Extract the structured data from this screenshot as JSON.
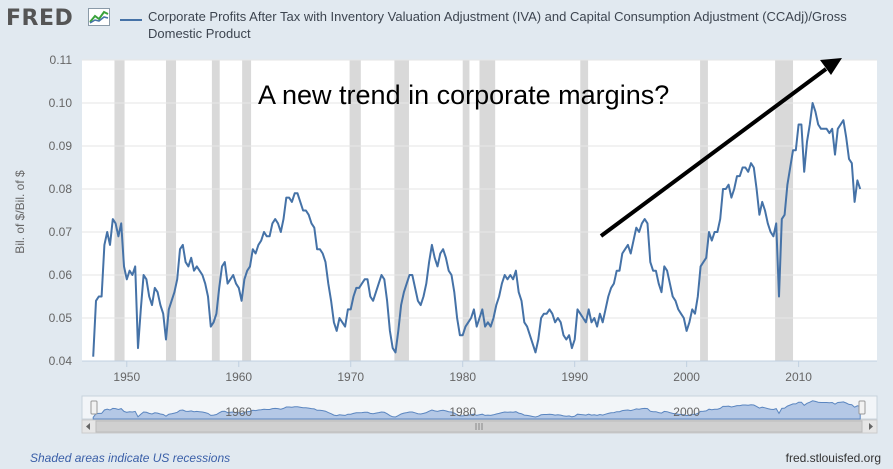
{
  "header": {
    "logo": "FRED",
    "legend_label": "Corporate Profits After Tax with Inventory Valuation Adjustment (IVA) and Capital Consumption Adjustment (CCAdj)/Gross Domestic Product"
  },
  "footer": {
    "note": "Shaded areas indicate US recessions",
    "site": "fred.stlouisfed.org"
  },
  "colors": {
    "series": "#4572a7",
    "recession": "#d9d9d9",
    "background": "#e1e9f0",
    "plot_background": "#ffffff",
    "navigator_fill": "#b4c8e6"
  },
  "chart_data": {
    "type": "line",
    "ylabel": "Bil. of $/Bil. of $",
    "ylim": [
      0.04,
      0.11
    ],
    "yticks": [
      "0.04",
      "0.05",
      "0.06",
      "0.07",
      "0.08",
      "0.09",
      "0.10",
      "0.11"
    ],
    "xlim": [
      1946,
      2017
    ],
    "xticks": [
      "1950",
      "1960",
      "1970",
      "1980",
      "1990",
      "2000",
      "2010"
    ],
    "grid": true,
    "annotation": "A new trend in corporate margins?",
    "recessions": [
      [
        1948.9,
        1949.8
      ],
      [
        1953.5,
        1954.4
      ],
      [
        1957.6,
        1958.3
      ],
      [
        1960.3,
        1961.1
      ],
      [
        1969.9,
        1970.9
      ],
      [
        1973.9,
        1975.2
      ],
      [
        1980.0,
        1980.6
      ],
      [
        1981.5,
        1982.9
      ],
      [
        1990.5,
        1991.2
      ],
      [
        2001.2,
        2001.9
      ],
      [
        2007.9,
        2009.5
      ]
    ],
    "navigator_ticks": [
      "1960",
      "1980",
      "2000"
    ],
    "series": [
      {
        "name": "Corporate Profits After Tax with Inventory Valuation Adjustment (IVA) and Capital Consumption Adjustment (CCAdj)/Gross Domestic Product",
        "points": [
          [
            1947.0,
            0.041
          ],
          [
            1947.25,
            0.054
          ],
          [
            1947.5,
            0.055
          ],
          [
            1947.75,
            0.055
          ],
          [
            1948.0,
            0.067
          ],
          [
            1948.25,
            0.07
          ],
          [
            1948.5,
            0.067
          ],
          [
            1948.75,
            0.073
          ],
          [
            1949.0,
            0.072
          ],
          [
            1949.25,
            0.069
          ],
          [
            1949.5,
            0.072
          ],
          [
            1949.75,
            0.062
          ],
          [
            1950.0,
            0.059
          ],
          [
            1950.25,
            0.061
          ],
          [
            1950.5,
            0.06
          ],
          [
            1950.75,
            0.062
          ],
          [
            1951.0,
            0.043
          ],
          [
            1951.25,
            0.052
          ],
          [
            1951.5,
            0.06
          ],
          [
            1951.75,
            0.059
          ],
          [
            1952.0,
            0.055
          ],
          [
            1952.25,
            0.053
          ],
          [
            1952.5,
            0.057
          ],
          [
            1952.75,
            0.056
          ],
          [
            1953.0,
            0.053
          ],
          [
            1953.25,
            0.051
          ],
          [
            1953.5,
            0.045
          ],
          [
            1953.75,
            0.052
          ],
          [
            1954.0,
            0.054
          ],
          [
            1954.25,
            0.056
          ],
          [
            1954.5,
            0.059
          ],
          [
            1954.75,
            0.066
          ],
          [
            1955.0,
            0.067
          ],
          [
            1955.25,
            0.063
          ],
          [
            1955.5,
            0.062
          ],
          [
            1955.75,
            0.064
          ],
          [
            1956.0,
            0.061
          ],
          [
            1956.25,
            0.062
          ],
          [
            1956.5,
            0.061
          ],
          [
            1956.75,
            0.06
          ],
          [
            1957.0,
            0.058
          ],
          [
            1957.25,
            0.055
          ],
          [
            1957.5,
            0.048
          ],
          [
            1957.75,
            0.049
          ],
          [
            1958.0,
            0.051
          ],
          [
            1958.25,
            0.057
          ],
          [
            1958.5,
            0.062
          ],
          [
            1958.75,
            0.063
          ],
          [
            1959.0,
            0.058
          ],
          [
            1959.25,
            0.059
          ],
          [
            1959.5,
            0.06
          ],
          [
            1959.75,
            0.058
          ],
          [
            1960.0,
            0.057
          ],
          [
            1960.25,
            0.054
          ],
          [
            1960.5,
            0.059
          ],
          [
            1960.75,
            0.061
          ],
          [
            1961.0,
            0.062
          ],
          [
            1961.25,
            0.066
          ],
          [
            1961.5,
            0.065
          ],
          [
            1961.75,
            0.067
          ],
          [
            1962.0,
            0.068
          ],
          [
            1962.25,
            0.07
          ],
          [
            1962.5,
            0.069
          ],
          [
            1962.75,
            0.069
          ],
          [
            1963.0,
            0.072
          ],
          [
            1963.25,
            0.073
          ],
          [
            1963.5,
            0.072
          ],
          [
            1963.75,
            0.07
          ],
          [
            1964.0,
            0.073
          ],
          [
            1964.25,
            0.078
          ],
          [
            1964.5,
            0.078
          ],
          [
            1964.75,
            0.077
          ],
          [
            1965.0,
            0.079
          ],
          [
            1965.25,
            0.079
          ],
          [
            1965.5,
            0.077
          ],
          [
            1965.75,
            0.075
          ],
          [
            1966.0,
            0.075
          ],
          [
            1966.25,
            0.074
          ],
          [
            1966.5,
            0.072
          ],
          [
            1966.75,
            0.071
          ],
          [
            1967.0,
            0.066
          ],
          [
            1967.25,
            0.066
          ],
          [
            1967.5,
            0.065
          ],
          [
            1967.75,
            0.063
          ],
          [
            1968.0,
            0.058
          ],
          [
            1968.25,
            0.054
          ],
          [
            1968.5,
            0.049
          ],
          [
            1968.75,
            0.047
          ],
          [
            1969.0,
            0.05
          ],
          [
            1969.25,
            0.049
          ],
          [
            1969.5,
            0.048
          ],
          [
            1969.75,
            0.052
          ],
          [
            1970.0,
            0.052
          ],
          [
            1970.25,
            0.055
          ],
          [
            1970.5,
            0.057
          ],
          [
            1970.75,
            0.057
          ],
          [
            1971.0,
            0.058
          ],
          [
            1971.25,
            0.059
          ],
          [
            1971.5,
            0.059
          ],
          [
            1971.75,
            0.055
          ],
          [
            1972.0,
            0.054
          ],
          [
            1972.25,
            0.056
          ],
          [
            1972.5,
            0.058
          ],
          [
            1972.75,
            0.06
          ],
          [
            1973.0,
            0.059
          ],
          [
            1973.25,
            0.054
          ],
          [
            1973.5,
            0.047
          ],
          [
            1973.75,
            0.043
          ],
          [
            1974.0,
            0.042
          ],
          [
            1974.25,
            0.047
          ],
          [
            1974.5,
            0.053
          ],
          [
            1974.75,
            0.056
          ],
          [
            1975.0,
            0.058
          ],
          [
            1975.25,
            0.06
          ],
          [
            1975.5,
            0.06
          ],
          [
            1975.75,
            0.057
          ],
          [
            1976.0,
            0.054
          ],
          [
            1976.25,
            0.053
          ],
          [
            1976.5,
            0.055
          ],
          [
            1976.75,
            0.058
          ],
          [
            1977.0,
            0.063
          ],
          [
            1977.25,
            0.067
          ],
          [
            1977.5,
            0.064
          ],
          [
            1977.75,
            0.062
          ],
          [
            1978.0,
            0.065
          ],
          [
            1978.25,
            0.066
          ],
          [
            1978.5,
            0.064
          ],
          [
            1978.75,
            0.061
          ],
          [
            1979.0,
            0.06
          ],
          [
            1979.25,
            0.056
          ],
          [
            1979.5,
            0.05
          ],
          [
            1979.75,
            0.046
          ],
          [
            1980.0,
            0.046
          ],
          [
            1980.25,
            0.048
          ],
          [
            1980.5,
            0.049
          ],
          [
            1980.75,
            0.05
          ],
          [
            1981.0,
            0.052
          ],
          [
            1981.25,
            0.048
          ],
          [
            1981.5,
            0.05
          ],
          [
            1981.75,
            0.052
          ],
          [
            1982.0,
            0.048
          ],
          [
            1982.25,
            0.049
          ],
          [
            1982.5,
            0.048
          ],
          [
            1982.75,
            0.05
          ],
          [
            1983.0,
            0.053
          ],
          [
            1983.25,
            0.055
          ],
          [
            1983.5,
            0.058
          ],
          [
            1983.75,
            0.06
          ],
          [
            1984.0,
            0.059
          ],
          [
            1984.25,
            0.06
          ],
          [
            1984.5,
            0.059
          ],
          [
            1984.75,
            0.061
          ],
          [
            1985.0,
            0.056
          ],
          [
            1985.25,
            0.054
          ],
          [
            1985.5,
            0.049
          ],
          [
            1985.75,
            0.048
          ],
          [
            1986.0,
            0.046
          ],
          [
            1986.25,
            0.044
          ],
          [
            1986.5,
            0.042
          ],
          [
            1986.75,
            0.045
          ],
          [
            1987.0,
            0.05
          ],
          [
            1987.25,
            0.051
          ],
          [
            1987.5,
            0.051
          ],
          [
            1987.75,
            0.052
          ],
          [
            1988.0,
            0.051
          ],
          [
            1988.25,
            0.049
          ],
          [
            1988.5,
            0.05
          ],
          [
            1988.75,
            0.049
          ],
          [
            1989.0,
            0.046
          ],
          [
            1989.25,
            0.045
          ],
          [
            1989.5,
            0.046
          ],
          [
            1989.75,
            0.043
          ],
          [
            1990.0,
            0.045
          ],
          [
            1990.25,
            0.052
          ],
          [
            1990.5,
            0.051
          ],
          [
            1990.75,
            0.05
          ],
          [
            1991.0,
            0.049
          ],
          [
            1991.25,
            0.052
          ],
          [
            1991.5,
            0.049
          ],
          [
            1991.75,
            0.05
          ],
          [
            1992.0,
            0.048
          ],
          [
            1992.25,
            0.051
          ],
          [
            1992.5,
            0.049
          ],
          [
            1992.75,
            0.052
          ],
          [
            1993.0,
            0.055
          ],
          [
            1993.25,
            0.057
          ],
          [
            1993.5,
            0.058
          ],
          [
            1993.75,
            0.061
          ],
          [
            1994.0,
            0.061
          ],
          [
            1994.25,
            0.065
          ],
          [
            1994.5,
            0.066
          ],
          [
            1994.75,
            0.067
          ],
          [
            1995.0,
            0.065
          ],
          [
            1995.25,
            0.068
          ],
          [
            1995.5,
            0.071
          ],
          [
            1995.75,
            0.07
          ],
          [
            1996.0,
            0.072
          ],
          [
            1996.25,
            0.073
          ],
          [
            1996.5,
            0.072
          ],
          [
            1996.75,
            0.063
          ],
          [
            1997.0,
            0.061
          ],
          [
            1997.25,
            0.061
          ],
          [
            1997.5,
            0.058
          ],
          [
            1997.75,
            0.056
          ],
          [
            1998.0,
            0.062
          ],
          [
            1998.25,
            0.061
          ],
          [
            1998.5,
            0.058
          ],
          [
            1998.75,
            0.055
          ],
          [
            1999.0,
            0.054
          ],
          [
            1999.25,
            0.052
          ],
          [
            1999.5,
            0.051
          ],
          [
            1999.75,
            0.05
          ],
          [
            2000.0,
            0.047
          ],
          [
            2000.25,
            0.049
          ],
          [
            2000.5,
            0.052
          ],
          [
            2000.75,
            0.051
          ],
          [
            2001.0,
            0.055
          ],
          [
            2001.25,
            0.062
          ],
          [
            2001.5,
            0.063
          ],
          [
            2001.75,
            0.064
          ],
          [
            2002.0,
            0.07
          ],
          [
            2002.25,
            0.068
          ],
          [
            2002.5,
            0.07
          ],
          [
            2002.75,
            0.07
          ],
          [
            2003.0,
            0.073
          ],
          [
            2003.25,
            0.08
          ],
          [
            2003.5,
            0.08
          ],
          [
            2003.75,
            0.081
          ],
          [
            2004.0,
            0.078
          ],
          [
            2004.25,
            0.08
          ],
          [
            2004.5,
            0.083
          ],
          [
            2004.75,
            0.083
          ],
          [
            2005.0,
            0.085
          ],
          [
            2005.25,
            0.085
          ],
          [
            2005.5,
            0.084
          ],
          [
            2005.75,
            0.086
          ],
          [
            2006.0,
            0.085
          ],
          [
            2006.25,
            0.08
          ],
          [
            2006.5,
            0.074
          ],
          [
            2006.75,
            0.077
          ],
          [
            2007.0,
            0.075
          ],
          [
            2007.25,
            0.072
          ],
          [
            2007.5,
            0.07
          ],
          [
            2007.75,
            0.069
          ],
          [
            2008.0,
            0.072
          ],
          [
            2008.25,
            0.055
          ],
          [
            2008.5,
            0.073
          ],
          [
            2008.75,
            0.074
          ],
          [
            2009.0,
            0.081
          ],
          [
            2009.25,
            0.085
          ],
          [
            2009.5,
            0.089
          ],
          [
            2009.75,
            0.089
          ],
          [
            2010.0,
            0.095
          ],
          [
            2010.25,
            0.095
          ],
          [
            2010.5,
            0.084
          ],
          [
            2010.75,
            0.091
          ],
          [
            2011.0,
            0.095
          ],
          [
            2011.25,
            0.1
          ],
          [
            2011.5,
            0.098
          ],
          [
            2011.75,
            0.095
          ],
          [
            2012.0,
            0.094
          ],
          [
            2012.25,
            0.094
          ],
          [
            2012.5,
            0.094
          ],
          [
            2012.75,
            0.093
          ],
          [
            2013.0,
            0.094
          ],
          [
            2013.25,
            0.088
          ],
          [
            2013.5,
            0.094
          ],
          [
            2013.75,
            0.095
          ],
          [
            2014.0,
            0.096
          ],
          [
            2014.25,
            0.092
          ],
          [
            2014.5,
            0.087
          ],
          [
            2014.75,
            0.086
          ],
          [
            2015.0,
            0.077
          ],
          [
            2015.25,
            0.082
          ],
          [
            2015.5,
            0.08
          ]
        ]
      }
    ]
  }
}
